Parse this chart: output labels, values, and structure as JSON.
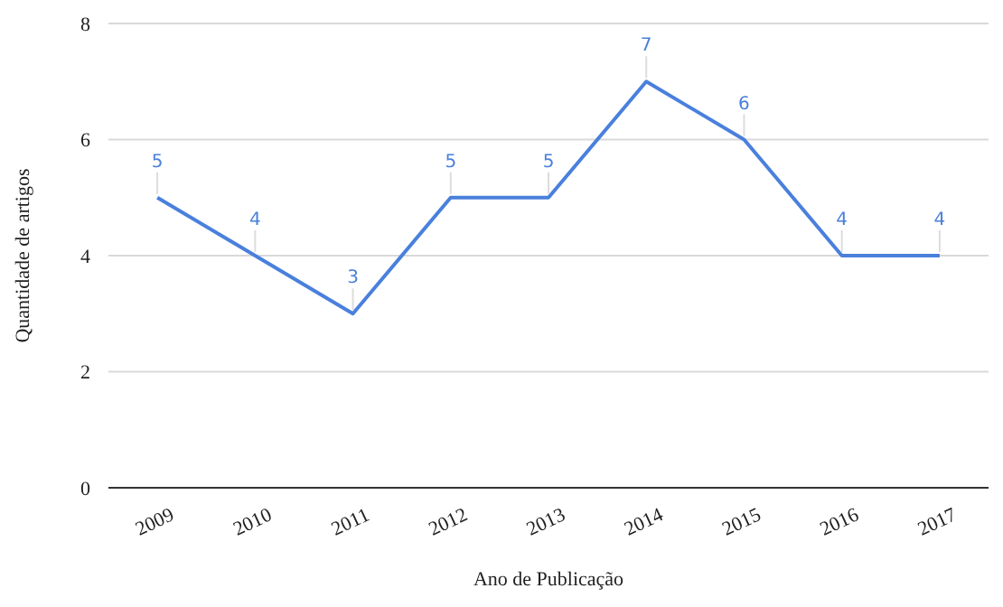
{
  "chart_data": {
    "type": "line",
    "xlabel": "Ano de Publicação",
    "ylabel": "Quantidade de artigos",
    "categories": [
      "2009",
      "2010",
      "2011",
      "2012",
      "2013",
      "2014",
      "2015",
      "2016",
      "2017"
    ],
    "series": [
      {
        "color": "#4a80dc",
        "values": [
          5,
          4,
          3,
          5,
          5,
          7,
          6,
          4,
          4
        ]
      }
    ],
    "ylim": [
      0,
      8
    ],
    "yticks": [
      0,
      2,
      4,
      6,
      8
    ],
    "grid": "y",
    "data_labels": true,
    "marker": "none",
    "line_style": "solid"
  }
}
